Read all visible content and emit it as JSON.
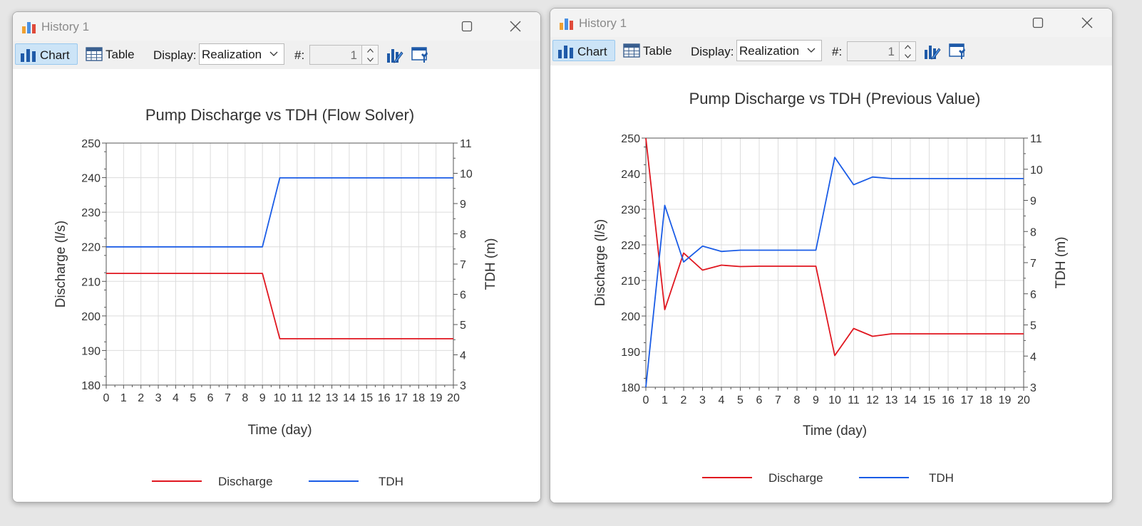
{
  "colors": {
    "discharge": "#e0161f",
    "tdh": "#1a5ce6",
    "grid": "#dcdcdc",
    "axis": "#555555"
  },
  "windows": [
    {
      "title": "History 1",
      "toolbar": {
        "chart_label": "Chart",
        "table_label": "Table",
        "display_label": "Display:",
        "display_value": "Realization",
        "number_label": "#:",
        "number_value": "1"
      },
      "icons": [
        "app-chart-icon",
        "minimize-icon",
        "maximize-icon",
        "close-icon",
        "bar-chart-icon",
        "table-icon",
        "chevron-down-icon",
        "chart-edit-icon",
        "window-settings-icon"
      ],
      "chart_data": {
        "type": "line",
        "title": "Pump Discharge vs TDH (Flow Solver)",
        "xlabel": "Time (day)",
        "ylabel": "Discharge (l/s)",
        "y2label": "TDH (m)",
        "xlim": [
          0,
          20
        ],
        "ylim": [
          180,
          250
        ],
        "y2lim": [
          3,
          11
        ],
        "x_ticks": [
          "0",
          "1",
          "2",
          "3",
          "4",
          "5",
          "6",
          "7",
          "8",
          "9",
          "10",
          "11",
          "12",
          "13",
          "14",
          "15",
          "16",
          "17",
          "18",
          "19",
          "20"
        ],
        "y_ticks": [
          "180",
          "190",
          "200",
          "210",
          "220",
          "230",
          "240",
          "250"
        ],
        "y2_ticks": [
          "3",
          "4",
          "5",
          "6",
          "7",
          "8",
          "9",
          "10",
          "11"
        ],
        "grid": true,
        "legend_position": "bottom",
        "series": [
          {
            "name": "Discharge",
            "axis": "left",
            "color": "#e0161f",
            "points": [
              [
                0,
                212.3
              ],
              [
                9,
                212.3
              ],
              [
                10,
                193.4
              ],
              [
                20,
                193.4
              ]
            ]
          },
          {
            "name": "TDH",
            "axis": "right",
            "color": "#1a5ce6",
            "points": [
              [
                0,
                7.57
              ],
              [
                9,
                7.57
              ],
              [
                10,
                9.85
              ],
              [
                20,
                9.85
              ]
            ]
          }
        ]
      }
    },
    {
      "title": "History 1",
      "toolbar": {
        "chart_label": "Chart",
        "table_label": "Table",
        "display_label": "Display:",
        "display_value": "Realization",
        "number_label": "#:",
        "number_value": "1"
      },
      "icons": [
        "app-chart-icon",
        "minimize-icon",
        "maximize-icon",
        "close-icon",
        "bar-chart-icon",
        "table-icon",
        "chevron-down-icon",
        "chart-edit-icon",
        "window-settings-icon"
      ],
      "chart_data": {
        "type": "line",
        "title": "Pump Discharge vs TDH (Previous Value)",
        "xlabel": "Time (day)",
        "ylabel": "Discharge (l/s)",
        "y2label": "TDH (m)",
        "xlim": [
          0,
          20
        ],
        "ylim": [
          180,
          250
        ],
        "y2lim": [
          3,
          11
        ],
        "x_ticks": [
          "0",
          "1",
          "2",
          "3",
          "4",
          "5",
          "6",
          "7",
          "8",
          "9",
          "10",
          "11",
          "12",
          "13",
          "14",
          "15",
          "16",
          "17",
          "18",
          "19",
          "20"
        ],
        "y_ticks": [
          "180",
          "190",
          "200",
          "210",
          "220",
          "230",
          "240",
          "250"
        ],
        "y2_ticks": [
          "3",
          "4",
          "5",
          "6",
          "7",
          "8",
          "9",
          "10",
          "11"
        ],
        "grid": true,
        "legend_position": "bottom",
        "series": [
          {
            "name": "Discharge",
            "axis": "left",
            "color": "#e0161f",
            "points": [
              [
                0,
                250
              ],
              [
                1,
                201.8
              ],
              [
                2,
                217.7
              ],
              [
                3,
                212.9
              ],
              [
                4,
                214.3
              ],
              [
                5,
                213.9
              ],
              [
                6,
                214
              ],
              [
                7,
                214
              ],
              [
                8,
                214
              ],
              [
                9,
                214
              ],
              [
                10,
                188.9
              ],
              [
                11,
                196.5
              ],
              [
                12,
                194.3
              ],
              [
                13,
                195
              ],
              [
                14,
                195
              ],
              [
                15,
                195
              ],
              [
                16,
                195
              ],
              [
                17,
                195
              ],
              [
                18,
                195
              ],
              [
                19,
                195
              ],
              [
                20,
                195
              ]
            ]
          },
          {
            "name": "TDH",
            "axis": "right",
            "color": "#1a5ce6",
            "points": [
              [
                0,
                3
              ],
              [
                1,
                8.84
              ],
              [
                2,
                7.02
              ],
              [
                3,
                7.53
              ],
              [
                4,
                7.36
              ],
              [
                5,
                7.4
              ],
              [
                6,
                7.4
              ],
              [
                7,
                7.4
              ],
              [
                8,
                7.4
              ],
              [
                9,
                7.4
              ],
              [
                10,
                10.38
              ],
              [
                11,
                9.5
              ],
              [
                12,
                9.75
              ],
              [
                13,
                9.7
              ],
              [
                14,
                9.7
              ],
              [
                15,
                9.7
              ],
              [
                16,
                9.7
              ],
              [
                17,
                9.7
              ],
              [
                18,
                9.7
              ],
              [
                19,
                9.7
              ],
              [
                20,
                9.7
              ]
            ]
          }
        ]
      }
    }
  ]
}
